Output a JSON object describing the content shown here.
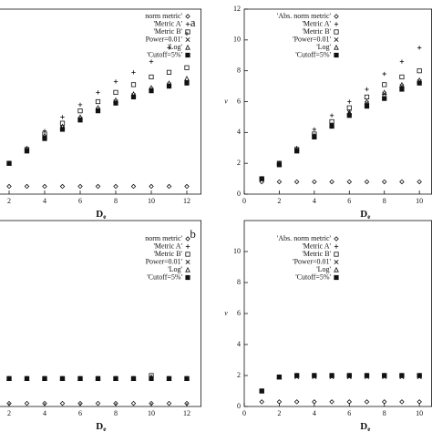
{
  "chart_data": [
    {
      "type": "scatter",
      "panel_label": "a",
      "x_label": "D",
      "x_label_sub": "e",
      "x": [
        2,
        3,
        4,
        5,
        6,
        7,
        8,
        9,
        10,
        11,
        12
      ],
      "xlim": [
        0,
        12.8
      ],
      "ylim": [
        0,
        12
      ],
      "xticks": [
        2,
        4,
        6,
        8,
        10,
        12
      ],
      "series": [
        {
          "name": "norm metric'",
          "marker": "diamond",
          "color": "#111",
          "values": [
            0.5,
            0.5,
            0.5,
            0.5,
            0.5,
            0.5,
            0.5,
            0.5,
            0.5,
            0.5,
            0.5
          ]
        },
        {
          "name": "'Metric A'",
          "marker": "plus",
          "color": "#111",
          "values": [
            2.0,
            3.0,
            4.1,
            5.0,
            5.8,
            6.6,
            7.3,
            7.9,
            8.6,
            9.5,
            10.4
          ]
        },
        {
          "name": "'Metric B'",
          "marker": "box",
          "color": "#111",
          "values": [
            2.0,
            2.9,
            3.9,
            4.6,
            5.4,
            6.0,
            6.6,
            7.1,
            7.6,
            7.9,
            8.2
          ]
        },
        {
          "name": "Power=0.01'",
          "marker": "cross",
          "color": "#111",
          "values": [
            2.0,
            2.8,
            3.7,
            4.3,
            4.9,
            5.5,
            6.0,
            6.4,
            6.8,
            7.1,
            7.3
          ]
        },
        {
          "name": "'Log'",
          "marker": "triangle",
          "color": "#111",
          "values": [
            2.0,
            2.8,
            3.8,
            4.4,
            5.0,
            5.6,
            6.1,
            6.5,
            6.9,
            7.2,
            7.5
          ]
        },
        {
          "name": "'Cutoff=5%'",
          "marker": "filled",
          "color": "#111",
          "values": [
            2.0,
            2.8,
            3.6,
            4.2,
            4.8,
            5.4,
            5.9,
            6.3,
            6.7,
            7.0,
            7.2
          ]
        }
      ]
    },
    {
      "type": "scatter",
      "y_label": "ν",
      "x_label": "D",
      "x_label_sub": "e",
      "x": [
        1,
        2,
        3,
        4,
        5,
        6,
        7,
        8,
        9,
        10
      ],
      "xlim": [
        0,
        10.7
      ],
      "ylim": [
        0,
        12
      ],
      "xticks": [
        0,
        2,
        4,
        6,
        8,
        10
      ],
      "yticks": [
        0,
        2,
        4,
        6,
        8,
        10,
        12
      ],
      "series": [
        {
          "name": "'Abs. norm metric'",
          "marker": "diamond",
          "color": "#111",
          "values": [
            0.8,
            0.8,
            0.8,
            0.8,
            0.8,
            0.8,
            0.8,
            0.8,
            0.8,
            0.8
          ]
        },
        {
          "name": "'Metric A'",
          "marker": "plus",
          "color": "#111",
          "values": [
            1.0,
            2.0,
            3.0,
            4.2,
            5.1,
            6.0,
            6.8,
            7.8,
            8.6,
            9.5
          ]
        },
        {
          "name": "'Metric B'",
          "marker": "box",
          "color": "#111",
          "values": [
            1.0,
            2.0,
            2.9,
            3.9,
            4.7,
            5.6,
            6.3,
            7.1,
            7.6,
            8.0
          ]
        },
        {
          "name": "'Power=0.01'",
          "marker": "cross",
          "color": "#111",
          "values": [
            1.0,
            2.0,
            2.8,
            3.8,
            4.5,
            5.3,
            5.9,
            6.5,
            7.0,
            7.3
          ]
        },
        {
          "name": "'Log'",
          "marker": "triangle",
          "color": "#111",
          "values": [
            1.0,
            2.0,
            2.8,
            3.8,
            4.5,
            5.3,
            6.0,
            6.6,
            7.1,
            7.4
          ]
        },
        {
          "name": "'Cutoff=5%'",
          "marker": "filled",
          "color": "#111",
          "values": [
            1.0,
            1.9,
            2.8,
            3.7,
            4.4,
            5.1,
            5.7,
            6.2,
            6.8,
            7.2
          ]
        }
      ]
    },
    {
      "type": "scatter",
      "panel_label": "b",
      "x_label": "D",
      "x_label_sub": "e",
      "x": [
        2,
        3,
        4,
        5,
        6,
        7,
        8,
        9,
        10,
        11,
        12
      ],
      "xlim": [
        0,
        12.8
      ],
      "ylim": [
        0,
        12
      ],
      "xticks": [
        2,
        4,
        6,
        8,
        10,
        12
      ],
      "series": [
        {
          "name": "norm metric'",
          "marker": "diamond",
          "color": "#111",
          "values": [
            0.2,
            0.2,
            0.2,
            0.2,
            0.2,
            0.2,
            0.2,
            0.2,
            0.2,
            0.2,
            0.2
          ]
        },
        {
          "name": "'Metric A'",
          "marker": "plus",
          "color": "#111",
          "values": [
            1.8,
            1.8,
            1.8,
            1.8,
            1.8,
            1.8,
            1.8,
            1.8,
            1.9,
            1.8,
            1.8
          ]
        },
        {
          "name": "'Metric B'",
          "marker": "box",
          "color": "#111",
          "values": [
            1.8,
            1.8,
            1.8,
            1.8,
            1.8,
            1.8,
            1.8,
            1.8,
            2.0,
            1.8,
            1.8
          ]
        },
        {
          "name": "Power=0.01'",
          "marker": "cross",
          "color": "#111",
          "values": [
            1.8,
            1.8,
            1.8,
            1.8,
            1.8,
            1.8,
            1.8,
            1.8,
            1.8,
            1.8,
            1.8
          ]
        },
        {
          "name": "'Log'",
          "marker": "triangle",
          "color": "#111",
          "values": [
            1.8,
            1.8,
            1.8,
            1.8,
            1.8,
            1.8,
            1.8,
            1.8,
            1.9,
            1.8,
            1.8
          ]
        },
        {
          "name": "'Cutoff=5%'",
          "marker": "filled",
          "color": "#111",
          "values": [
            1.8,
            1.8,
            1.8,
            1.8,
            1.8,
            1.8,
            1.8,
            1.8,
            1.8,
            1.8,
            1.8
          ]
        }
      ]
    },
    {
      "type": "scatter",
      "y_label": "ν",
      "x_label": "D",
      "x_label_sub": "e",
      "x": [
        1,
        2,
        3,
        4,
        5,
        6,
        7,
        8,
        9,
        10
      ],
      "xlim": [
        0,
        10.7
      ],
      "ylim": [
        0,
        12
      ],
      "xticks": [
        0,
        2,
        4,
        6,
        8,
        10
      ],
      "yticks": [
        0,
        2,
        4,
        6,
        8,
        10
      ],
      "series": [
        {
          "name": "'Abs. norm metric'",
          "marker": "diamond",
          "color": "#111",
          "values": [
            0.3,
            0.3,
            0.3,
            0.3,
            0.3,
            0.3,
            0.3,
            0.3,
            0.3,
            0.3
          ]
        },
        {
          "name": "'Metric A'",
          "marker": "plus",
          "color": "#111",
          "values": [
            1.0,
            1.9,
            2.0,
            2.0,
            2.0,
            2.0,
            2.0,
            2.0,
            2.0,
            2.0
          ]
        },
        {
          "name": "'Metric B'",
          "marker": "box",
          "color": "#111",
          "values": [
            1.0,
            1.9,
            2.0,
            2.0,
            2.0,
            2.0,
            2.0,
            2.0,
            2.0,
            2.0
          ]
        },
        {
          "name": "'Power=0.01'",
          "marker": "cross",
          "color": "#111",
          "values": [
            1.0,
            1.9,
            1.9,
            1.9,
            1.9,
            1.9,
            1.9,
            1.9,
            1.9,
            1.9
          ]
        },
        {
          "name": "'Log'",
          "marker": "triangle",
          "color": "#111",
          "values": [
            1.0,
            1.9,
            2.0,
            2.0,
            2.0,
            2.0,
            2.0,
            2.0,
            2.0,
            2.0
          ]
        },
        {
          "name": "'Cutoff=5%'",
          "marker": "filled",
          "color": "#111",
          "values": [
            1.0,
            1.9,
            2.0,
            2.0,
            2.0,
            2.0,
            2.0,
            2.0,
            2.0,
            2.0
          ]
        }
      ]
    }
  ]
}
